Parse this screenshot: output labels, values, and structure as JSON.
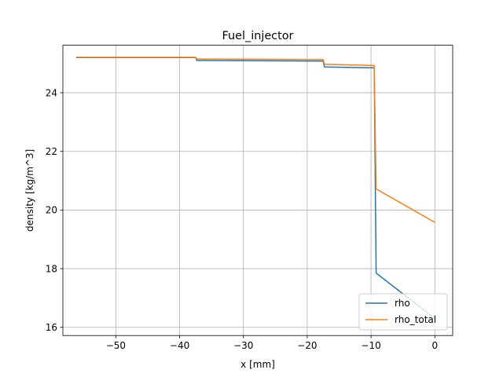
{
  "chart_data": {
    "type": "line",
    "title": "Fuel_injector",
    "xlabel": "x [mm]",
    "ylabel": "density [kg/m^3]",
    "xlim": [
      -58.3,
      2.8
    ],
    "ylim": [
      15.72,
      25.62
    ],
    "xticks": [
      -50,
      -40,
      -30,
      -20,
      -10,
      0
    ],
    "xtick_labels": [
      "−50",
      "−40",
      "−30",
      "−20",
      "−10",
      "0"
    ],
    "yticks": [
      16,
      18,
      20,
      22,
      24
    ],
    "ytick_labels": [
      "16",
      "18",
      "20",
      "22",
      "24"
    ],
    "grid": true,
    "legend": {
      "position": "lower-right"
    },
    "series": [
      {
        "name": "rho",
        "color": "#1f77b4",
        "x": [
          -56.2,
          -37.5,
          -37.3,
          -17.5,
          -17.3,
          -9.6,
          -9.5,
          -9.2,
          0
        ],
        "y": [
          25.2,
          25.2,
          25.1,
          25.08,
          24.88,
          24.85,
          24.85,
          17.85,
          16.3
        ]
      },
      {
        "name": "rho_total",
        "color": "#ff7f0e",
        "x": [
          -56.2,
          -37.5,
          -37.3,
          -17.5,
          -17.3,
          -9.6,
          -9.5,
          -9.2,
          0
        ],
        "y": [
          25.21,
          25.21,
          25.15,
          25.13,
          24.97,
          24.93,
          24.93,
          20.72,
          19.58
        ]
      }
    ]
  }
}
